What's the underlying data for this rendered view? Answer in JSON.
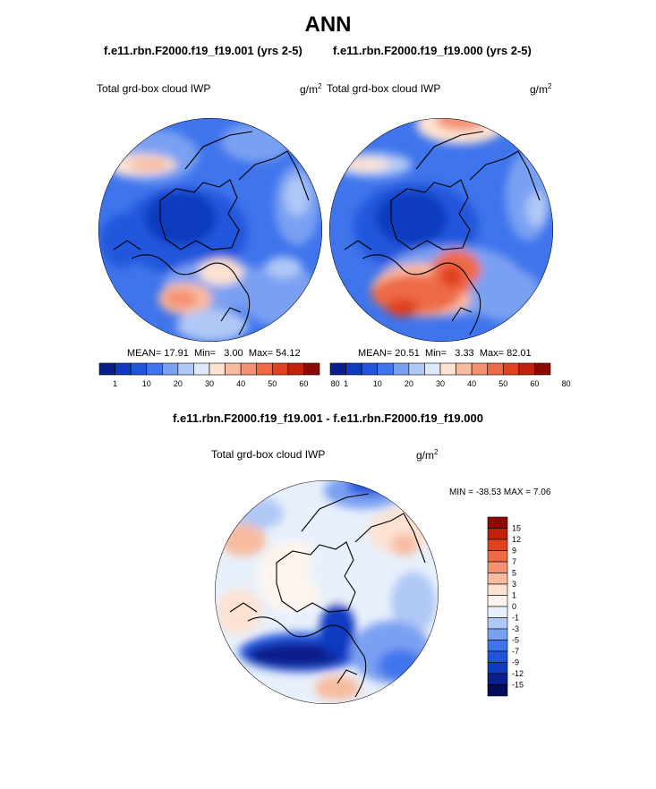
{
  "page_title": "ANN",
  "top_panels": [
    {
      "case_title": "f.e11.rbn.F2000.f19_f19.001 (yrs 2-5)",
      "variable_label": "Total grd-box cloud IWP",
      "units": "g/m",
      "units_exp": "2",
      "stats": {
        "mean_label": "MEAN=",
        "mean": "17.91",
        "min_label": "Min=",
        "min": "3.00",
        "max_label": "Max=",
        "max": "54.12"
      }
    },
    {
      "case_title": "f.e11.rbn.F2000.f19_f19.000 (yrs 2-5)",
      "variable_label": "Total grd-box cloud IWP",
      "units": "g/m",
      "units_exp": "2",
      "stats": {
        "mean_label": "MEAN=",
        "mean": "20.51",
        "min_label": "Min=",
        "min": "3.33",
        "max_label": "Max=",
        "max": "82.01"
      }
    }
  ],
  "diff_panel": {
    "title": "f.e11.rbn.F2000.f19_f19.001 - f.e11.rbn.F2000.f19_f19.000",
    "variable_label": "Total grd-box cloud IWP",
    "units": "g/m",
    "units_exp": "2",
    "minmax": "MIN = -38.53 MAX =   7.06"
  },
  "chart_data": [
    {
      "type": "heatmap",
      "projection": "north-polar-stereographic",
      "title": "f.e11.rbn.F2000.f19_f19.001 (yrs 2-5)",
      "variable": "Total grd-box cloud IWP",
      "units": "g/m2",
      "mean": 17.91,
      "min": 3.0,
      "max": 54.12,
      "colorbar": {
        "orientation": "horizontal",
        "tick_labels": [
          "1",
          "10",
          "20",
          "30",
          "40",
          "50",
          "60",
          "80"
        ],
        "colors": [
          "#0a1e8c",
          "#0f3bbf",
          "#2156dc",
          "#3f74ec",
          "#7aa0f2",
          "#b0c8f6",
          "#dde9fa",
          "#fde2d2",
          "#f8bba0",
          "#f49173",
          "#ee6a46",
          "#e0411e",
          "#c0220c",
          "#8c0a04"
        ]
      }
    },
    {
      "type": "heatmap",
      "projection": "north-polar-stereographic",
      "title": "f.e11.rbn.F2000.f19_f19.000 (yrs 2-5)",
      "variable": "Total grd-box cloud IWP",
      "units": "g/m2",
      "mean": 20.51,
      "min": 3.33,
      "max": 82.01,
      "colorbar": {
        "orientation": "horizontal",
        "tick_labels": [
          "1",
          "10",
          "20",
          "30",
          "40",
          "50",
          "60",
          "80"
        ],
        "colors": [
          "#0a1e8c",
          "#0f3bbf",
          "#2156dc",
          "#3f74ec",
          "#7aa0f2",
          "#b0c8f6",
          "#dde9fa",
          "#fde2d2",
          "#f8bba0",
          "#f49173",
          "#ee6a46",
          "#e0411e",
          "#c0220c",
          "#8c0a04"
        ]
      }
    },
    {
      "type": "heatmap",
      "projection": "north-polar-stereographic",
      "title": "f.e11.rbn.F2000.f19_f19.001 - f.e11.rbn.F2000.f19_f19.000",
      "variable": "Total grd-box cloud IWP",
      "units": "g/m2",
      "min": -38.53,
      "max": 7.06,
      "colorbar": {
        "orientation": "vertical",
        "tick_labels": [
          "15",
          "12",
          "9",
          "7",
          "5",
          "3",
          "1",
          "0",
          "-1",
          "-3",
          "-5",
          "-7",
          "-9",
          "-12",
          "-15"
        ],
        "colors": [
          "#8c0a04",
          "#c0220c",
          "#e0411e",
          "#ee6a46",
          "#f49173",
          "#f8bba0",
          "#fde2d2",
          "#fdf4ee",
          "#e8f0fb",
          "#b0c8f6",
          "#7aa0f2",
          "#3f74ec",
          "#2156dc",
          "#0f3bbf",
          "#0a1e8c",
          "#040c5a"
        ]
      }
    }
  ]
}
